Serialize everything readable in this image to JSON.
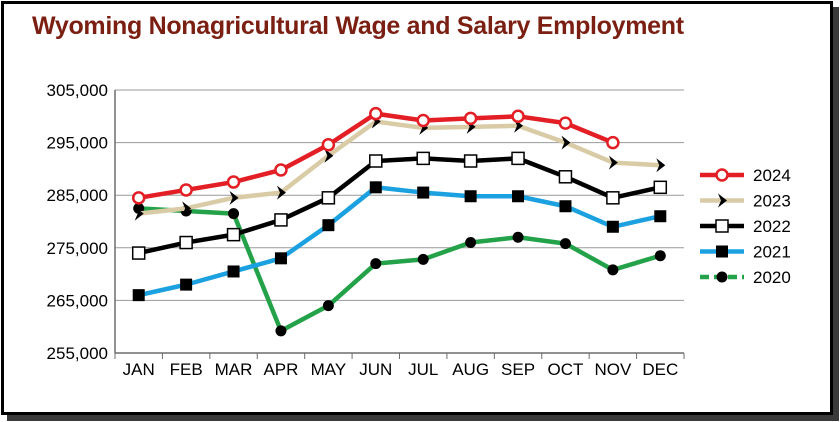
{
  "chart_data": {
    "type": "line",
    "title": "Wyoming Nonagricultural Wage and Salary Employment",
    "xlabel": "",
    "ylabel": "",
    "categories": [
      "JAN",
      "FEB",
      "MAR",
      "APR",
      "MAY",
      "JUN",
      "JUL",
      "AUG",
      "SEP",
      "OCT",
      "NOV",
      "DEC"
    ],
    "ylim": [
      255000,
      305000
    ],
    "yticks": [
      255000,
      265000,
      275000,
      285000,
      295000,
      305000
    ],
    "ytick_labels": [
      "255,000",
      "265,000",
      "275,000",
      "285,000",
      "295,000",
      "305,000"
    ],
    "grid": "horizontal",
    "legend_position": "right",
    "series": [
      {
        "name": "2024",
        "color": "#e31e24",
        "marker": "open-circle",
        "values": [
          284500,
          286000,
          287500,
          289800,
          294600,
          300500,
          299200,
          299600,
          300000,
          298700,
          295000,
          null
        ]
      },
      {
        "name": "2023",
        "color": "#d9cba6",
        "marker": "chevron",
        "values": [
          281500,
          282500,
          284500,
          285500,
          292500,
          299000,
          297800,
          298000,
          298200,
          295000,
          291200,
          290700
        ]
      },
      {
        "name": "2022",
        "color": "#000000",
        "marker": "open-square",
        "values": [
          274000,
          276000,
          277500,
          280300,
          284500,
          291500,
          292000,
          291500,
          292000,
          288500,
          284500,
          286500
        ]
      },
      {
        "name": "2021",
        "color": "#1ca1e0",
        "marker": "filled-square",
        "values": [
          266000,
          268000,
          270500,
          273000,
          279300,
          286500,
          285500,
          284800,
          284800,
          282900,
          279000,
          281000
        ]
      },
      {
        "name": "2020",
        "color": "#24a24a",
        "marker": "filled-circle",
        "values": [
          282500,
          282000,
          281500,
          259200,
          264000,
          272000,
          272800,
          276000,
          277000,
          275800,
          270800,
          273500
        ]
      }
    ]
  }
}
